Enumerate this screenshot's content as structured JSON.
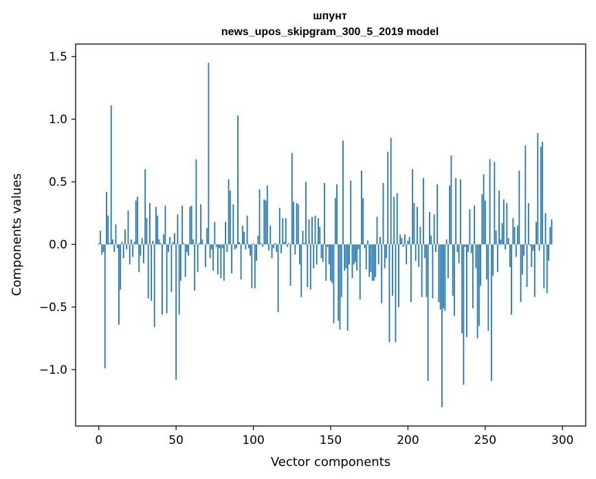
{
  "chart_data": {
    "type": "bar",
    "title": "шпунт",
    "subtitle": "news_upos_skipgram_300_5_2019 model",
    "xlabel": "Vector components",
    "ylabel": "Components values",
    "xlim": [
      -15,
      315
    ],
    "ylim": [
      -1.45,
      1.6
    ],
    "xticks": [
      0,
      50,
      100,
      150,
      200,
      250,
      300
    ],
    "xtick_labels": [
      "0",
      "50",
      "100",
      "150",
      "200",
      "250",
      "300"
    ],
    "yticks": [
      -1.0,
      -0.5,
      0.0,
      0.5,
      1.0,
      1.5
    ],
    "ytick_labels": [
      "−1.0",
      "−0.5",
      "0.0",
      "0.5",
      "1.0",
      "1.5"
    ],
    "grid": false,
    "bar_color": "#1f77b4",
    "values": [
      0.01,
      0.11,
      -0.08,
      -0.06,
      -0.99,
      0.42,
      0.23,
      0.01,
      1.11,
      0.04,
      -0.06,
      0.16,
      -0.03,
      -0.64,
      -0.36,
      0.02,
      -0.11,
      0.12,
      -0.04,
      0.27,
      -0.16,
      0.04,
      -0.1,
      0.02,
      0.35,
      0.38,
      -0.22,
      -0.09,
      0.05,
      -0.15,
      0.6,
      0.21,
      -0.43,
      0.33,
      -0.45,
      0.03,
      -0.66,
      0.3,
      0.23,
      0.04,
      0.01,
      -0.56,
      0.08,
      0.31,
      -0.55,
      -0.06,
      0.06,
      -0.38,
      0.02,
      0.09,
      -1.08,
      0.24,
      -0.56,
      -0.29,
      0.31,
      0.01,
      -0.26,
      -0.06,
      -0.09,
      0.3,
      0.31,
      0.04,
      -0.37,
      0.68,
      -0.22,
      0.01,
      0.32,
      0.04,
      0.0,
      -0.18,
      0.13,
      1.45,
      -0.11,
      -0.04,
      -0.21,
      0.18,
      -0.02,
      -0.24,
      -0.03,
      -0.27,
      -0.03,
      -0.29,
      0.18,
      -0.06,
      0.52,
      0.43,
      -0.23,
      0.32,
      -0.04,
      -0.03,
      1.03,
      0.02,
      -0.28,
      0.15,
      0.1,
      -0.04,
      0.23,
      -0.03,
      -0.09,
      -0.35,
      0.01,
      -0.35,
      -0.13,
      0.07,
      0.44,
      0.01,
      -0.02,
      0.36,
      0.35,
      0.47,
      -0.05,
      0.15,
      -0.11,
      -0.03,
      0.01,
      -0.06,
      -0.54,
      0.29,
      -0.07,
      0.21,
      0.02,
      0.21,
      -0.02,
      0.01,
      -0.33,
      0.73,
      0.34,
      -0.08,
      0.33,
      0.32,
      -0.16,
      -0.42,
      0.11,
      0.01,
      0.5,
      -0.34,
      0.2,
      -0.36,
      0.22,
      -0.19,
      0.23,
      -0.16,
      0.21,
      0.14,
      -0.11,
      -0.14,
      0.49,
      -0.29,
      -0.02,
      -0.16,
      -0.29,
      -0.31,
      -0.63,
      0.37,
      0.48,
      -0.61,
      -0.68,
      -0.42,
      0.83,
      -0.21,
      -0.19,
      -0.69,
      -0.16,
      0.51,
      -0.27,
      -0.16,
      -0.14,
      -0.21,
      -0.04,
      -0.44,
      0.59,
      0.37,
      -0.03,
      -0.2,
      0.03,
      -0.26,
      -0.22,
      -0.29,
      -0.29,
      -0.26,
      0.22,
      -0.16,
      0.06,
      -0.47,
      0.49,
      -0.19,
      -0.11,
      0.74,
      -0.78,
      0.85,
      -0.41,
      0.38,
      -0.78,
      0.41,
      -0.5,
      0.08,
      0.05,
      -0.02,
      0.08,
      -0.16,
      0.03,
      0.06,
      -0.46,
      0.6,
      0.33,
      -0.13,
      0.3,
      -0.18,
      0.14,
      -0.42,
      0.53,
      -0.11,
      -0.42,
      -1.09,
      0.26,
      0.07,
      -0.43,
      0.24,
      -0.06,
      0.48,
      -0.46,
      -0.52,
      -1.3,
      -0.51,
      -0.53,
      0.04,
      -0.27,
      0.47,
      0.71,
      -0.41,
      -0.57,
      0.53,
      -0.06,
      -0.15,
      0.52,
      -0.71,
      -1.12,
      -0.02,
      -0.74,
      -0.06,
      0.28,
      -0.07,
      -0.51,
      0.31,
      -0.19,
      -0.75,
      -0.65,
      -0.33,
      0.4,
      0.56,
      0.35,
      -0.28,
      -0.69,
      0.68,
      -1.09,
      -0.25,
      0.66,
      0.11,
      -0.22,
      0.43,
      0.04,
      0.17,
      0.36,
      -0.04,
      0.33,
      0.05,
      -0.18,
      -0.56,
      0.21,
      0.14,
      -0.1,
      0.15,
      0.59,
      -0.46,
      -0.24,
      -0.09,
      0.79,
      -0.34,
      0.33,
      -0.01,
      -0.18,
      -0.05,
      -0.42,
      0.18,
      0.89,
      -0.05,
      0.78,
      0.82,
      -0.35,
      0.25,
      -0.39,
      -0.13,
      0.14,
      0.2
    ]
  }
}
